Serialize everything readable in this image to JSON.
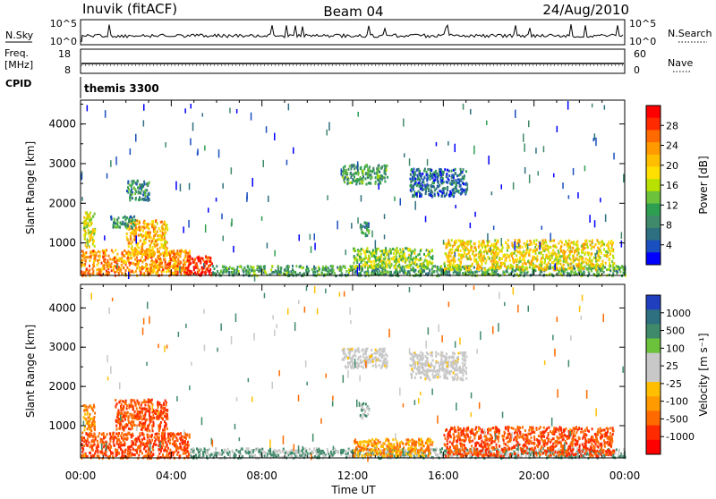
{
  "header": {
    "station": "Inuvik (fitACF)",
    "beam": "Beam 04",
    "date": "24/Aug/2010"
  },
  "aux_panels": {
    "nsky_label": "N.Sky",
    "nsky_ticks": [
      "10^5",
      "10^0"
    ],
    "nsearch_label": "N.Search",
    "nsearch_ticks": [
      "10^5",
      "10^0"
    ],
    "freq_label_1": "Freq.",
    "freq_label_2": "[MHz]",
    "freq_ticks": [
      "18",
      "8"
    ],
    "nave_label": "Nave",
    "nave_ticks": [
      "60",
      "0"
    ],
    "cpid_label": "CPID",
    "cpid_value": "themis 3300"
  },
  "chart_data": [
    {
      "type": "heatmap",
      "name": "power",
      "ylabel": "Slant Range [km]",
      "xlabel": "",
      "y_ticks": [
        1000,
        2000,
        3000,
        4000
      ],
      "ylim": [
        180,
        4600
      ],
      "x_tick_labels": [
        "00:00",
        "04:00",
        "08:00",
        "12:00",
        "16:00",
        "20:00",
        "00:00"
      ],
      "xlim_hours": [
        0,
        24
      ],
      "colorbar": {
        "label": "Power [dB]",
        "ticks": [
          "28",
          "24",
          "20",
          "16",
          "12",
          "8",
          "4"
        ],
        "colors": [
          "#ff0000",
          "#ff2a00",
          "#ff6a00",
          "#ff9a00",
          "#ffbf00",
          "#ffe000",
          "#b8e000",
          "#6cc23a",
          "#2e9e50",
          "#3f8a6a",
          "#2e6f80",
          "#1a4fbf",
          "#0000ff"
        ]
      },
      "regions": [
        {
          "t0": 0.0,
          "t1": 4.8,
          "r0": 200,
          "r1": 850,
          "level": 24
        },
        {
          "t0": 4.6,
          "t1": 5.8,
          "r0": 200,
          "r1": 700,
          "level": 30
        },
        {
          "t0": 5.8,
          "t1": 24.0,
          "r0": 200,
          "r1": 450,
          "level": 12
        },
        {
          "t0": 12.0,
          "t1": 15.5,
          "r0": 400,
          "r1": 900,
          "level": 16
        },
        {
          "t0": 16.0,
          "t1": 23.5,
          "r0": 350,
          "r1": 1100,
          "level": 20
        },
        {
          "t0": 2.0,
          "t1": 3.8,
          "r0": 700,
          "r1": 1600,
          "level": 22
        },
        {
          "t0": 0.1,
          "t1": 0.6,
          "r0": 900,
          "r1": 1800,
          "level": 18
        },
        {
          "t0": 1.3,
          "t1": 2.4,
          "r0": 1400,
          "r1": 1700,
          "level": 10
        },
        {
          "t0": 2.0,
          "t1": 3.0,
          "r0": 2100,
          "r1": 2600,
          "level": 10
        },
        {
          "t0": 11.5,
          "t1": 13.5,
          "r0": 2500,
          "r1": 3000,
          "level": 12
        },
        {
          "t0": 14.5,
          "t1": 17.0,
          "r0": 2200,
          "r1": 2900,
          "level": 8
        },
        {
          "t0": 12.3,
          "t1": 12.7,
          "r0": 1200,
          "r1": 1600,
          "level": 10
        }
      ]
    },
    {
      "type": "heatmap",
      "name": "velocity",
      "ylabel": "Slant Range [km]",
      "xlabel": "Time UT",
      "y_ticks": [
        1000,
        2000,
        3000,
        4000
      ],
      "ylim": [
        180,
        4600
      ],
      "x_tick_labels": [
        "00:00",
        "04:00",
        "08:00",
        "12:00",
        "16:00",
        "20:00",
        "00:00"
      ],
      "xlim_hours": [
        0,
        24
      ],
      "colorbar": {
        "label": "Velocity [m s⁻¹]",
        "ticks": [
          "1000",
          "500",
          "100",
          "25",
          "-25",
          "-100",
          "-500",
          "-1000"
        ],
        "colors": [
          "#1f3fbf",
          "#2e6f80",
          "#3f8a6a",
          "#6cc23a",
          "#c8c8c8",
          "#c8c8c8",
          "#ffbf00",
          "#ff9a00",
          "#ff6a00",
          "#ff2a00",
          "#ff0000"
        ]
      },
      "regions": [
        {
          "t0": 0.0,
          "t1": 4.8,
          "r0": 200,
          "r1": 850,
          "level": -500
        },
        {
          "t0": 1.5,
          "t1": 3.8,
          "r0": 900,
          "r1": 1700,
          "level": -500
        },
        {
          "t0": 4.8,
          "t1": 24.0,
          "r0": 200,
          "r1": 450,
          "level": 100
        },
        {
          "t0": 12.0,
          "t1": 15.5,
          "r0": 250,
          "r1": 700,
          "level": -100
        },
        {
          "t0": 16.0,
          "t1": 23.5,
          "r0": 250,
          "r1": 1000,
          "level": -500
        },
        {
          "t0": 11.5,
          "t1": 13.5,
          "r0": 2500,
          "r1": 3000,
          "level": 0
        },
        {
          "t0": 14.5,
          "t1": 17.0,
          "r0": 2200,
          "r1": 2900,
          "level": 0
        },
        {
          "t0": 12.3,
          "t1": 12.7,
          "r0": 1200,
          "r1": 1600,
          "level": 100
        },
        {
          "t0": 0.1,
          "t1": 0.6,
          "r0": 900,
          "r1": 1600,
          "level": -100
        }
      ]
    }
  ]
}
